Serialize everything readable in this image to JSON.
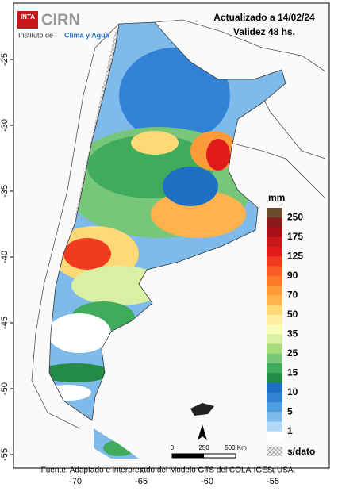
{
  "header": {
    "updated": "Actualizado a 14/02/24",
    "validity": "Validez 48 hs."
  },
  "logo": {
    "inta": "INTA",
    "cirn": "CIRN",
    "institute_prefix": "Instituto de",
    "institute_name": "Clima y Agua"
  },
  "legend": {
    "title": "mm",
    "colors": [
      "#6b4a2e",
      "#8b1a1a",
      "#a50f15",
      "#c8181b",
      "#e31a1c",
      "#f03b20",
      "#fb5a26",
      "#fc7a2a",
      "#fd9a3a",
      "#feb24c",
      "#fed976",
      "#ffeda0",
      "#f7fcb9",
      "#d9f0a3",
      "#a6dc7a",
      "#78c679",
      "#41ab5d",
      "#238b45",
      "#1d6fc4",
      "#3182d4",
      "#4d9de0",
      "#7fbbea",
      "#b3d8f5",
      "#ffffff"
    ],
    "labels": [
      "250",
      "175",
      "125",
      "90",
      "70",
      "50",
      "35",
      "25",
      "15",
      "10",
      "5",
      "1"
    ],
    "no_data": "s/dato"
  },
  "axes": {
    "lat_ticks": [
      -25,
      -30,
      -35,
      -40,
      -45,
      -50,
      -55
    ],
    "lon_ticks": [
      -70,
      -65,
      -60,
      -55
    ]
  },
  "scale_bar": {
    "labels": [
      "0",
      "250",
      "500 Km"
    ]
  },
  "source": "Fuente: Adaptado e interpretado del Modelo GFS del COLA-IGES, USA."
}
